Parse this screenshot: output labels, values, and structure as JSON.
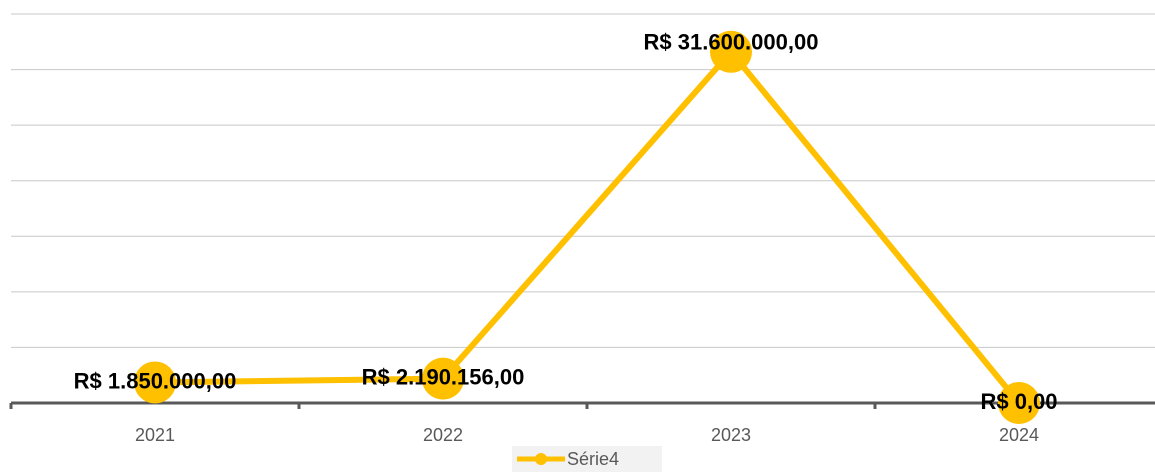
{
  "chart_data": {
    "type": "line",
    "categories": [
      "2021",
      "2022",
      "2023",
      "2024"
    ],
    "series": [
      {
        "name": "Série4",
        "color": "#ffc000",
        "values": [
          1850000,
          2190156,
          31600000,
          0
        ],
        "value_labels": [
          "R$ 1.850.000,00",
          "R$ 2.190.156,00",
          "R$ 31.600.000,00",
          "R$ 0,00"
        ]
      }
    ],
    "ylim": [
      0,
      35000000
    ],
    "yticks": [
      0,
      5000000,
      10000000,
      15000000,
      20000000,
      25000000,
      30000000,
      35000000
    ],
    "grid": true,
    "legend": "bottom"
  }
}
